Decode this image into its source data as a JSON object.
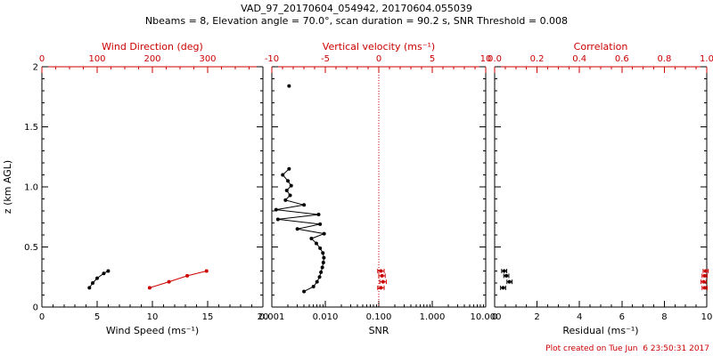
{
  "figure": {
    "title_line1": "VAD_97_20170604_054942, 20170604.055039",
    "title_line2": "Nbeams = 8, Elevation angle = 70.0°, scan duration = 90.2 s, SNR Threshold = 0.008",
    "footer": "Plot created on Tue Jun  6 23:50:31 2017",
    "colors": {
      "background": "#ffffff",
      "primary": "#000000",
      "accent": "#cc0000"
    }
  },
  "chart_data": [
    {
      "type": "scatter",
      "name": "wind",
      "y": {
        "label": "z (km AGL)",
        "lim": [
          0,
          2
        ],
        "ticks": [
          0,
          0.5,
          1,
          1.5,
          2
        ],
        "tickLabels": [
          "0",
          "0.5",
          "1.0",
          "1.5",
          "2"
        ],
        "minorStep": 0.1
      },
      "bottom": {
        "label": "Wind Speed (ms⁻¹)",
        "lim": [
          0,
          20
        ],
        "ticks": [
          0,
          5,
          10,
          15,
          20
        ],
        "tickLabels": [
          "0",
          "5",
          "10",
          "15",
          "20"
        ],
        "minorStep": 1
      },
      "top": {
        "label": "Wind Direction (deg)",
        "lim": [
          0,
          400
        ],
        "color": "accent",
        "ticks": [
          0,
          100,
          200,
          300
        ],
        "tickLabels": [
          "0",
          "100",
          "200",
          "300"
        ],
        "minorStep": 25
      },
      "series": [
        {
          "name": "wind-speed",
          "axis": "bottom",
          "color": "primary",
          "line": true,
          "points": [
            {
              "x": 4.3,
              "z": 0.16
            },
            {
              "x": 4.6,
              "z": 0.2
            },
            {
              "x": 5.0,
              "z": 0.24
            },
            {
              "x": 5.6,
              "z": 0.28
            },
            {
              "x": 6.0,
              "z": 0.3
            }
          ]
        },
        {
          "name": "wind-direction",
          "axis": "top",
          "color": "accent",
          "line": true,
          "points": [
            {
              "x": 195,
              "z": 0.16
            },
            {
              "x": 230,
              "z": 0.21
            },
            {
              "x": 263,
              "z": 0.26
            },
            {
              "x": 298,
              "z": 0.3
            }
          ]
        }
      ]
    },
    {
      "type": "scatter",
      "name": "snr",
      "y": {
        "lim": [
          0,
          2
        ],
        "ticks": [
          0,
          0.5,
          1,
          1.5,
          2
        ],
        "minorStep": 0.1
      },
      "bottom": {
        "label": "SNR",
        "lim": [
          0.001,
          10
        ],
        "log": true,
        "ticks": [
          0.001,
          0.01,
          0.1,
          1,
          10
        ],
        "tickLabels": [
          "0.001",
          "0.010",
          "0.100",
          "1.000",
          "10.000"
        ]
      },
      "top": {
        "label": "Vertical velocity (ms⁻¹)",
        "lim": [
          -10,
          10
        ],
        "color": "accent",
        "ticks": [
          -10,
          -5,
          0,
          5,
          10
        ],
        "tickLabels": [
          "-10",
          "-5",
          "0",
          "5",
          "10"
        ],
        "minorStep": 1
      },
      "refline": {
        "axis": "top",
        "x": 0,
        "style": "dotted",
        "color": "accent"
      },
      "series": [
        {
          "name": "snr-profile",
          "axis": "bottom",
          "color": "primary",
          "line": true,
          "points": [
            {
              "x": 0.004,
              "z": 0.13
            },
            {
              "x": 0.006,
              "z": 0.17
            },
            {
              "x": 0.007,
              "z": 0.21
            },
            {
              "x": 0.0078,
              "z": 0.25
            },
            {
              "x": 0.0083,
              "z": 0.29
            },
            {
              "x": 0.0088,
              "z": 0.33
            },
            {
              "x": 0.0092,
              "z": 0.37
            },
            {
              "x": 0.0094,
              "z": 0.41
            },
            {
              "x": 0.009,
              "z": 0.45
            },
            {
              "x": 0.008,
              "z": 0.49
            },
            {
              "x": 0.0068,
              "z": 0.53
            },
            {
              "x": 0.0055,
              "z": 0.57
            },
            {
              "x": 0.0095,
              "z": 0.61
            },
            {
              "x": 0.003,
              "z": 0.65
            },
            {
              "x": 0.008,
              "z": 0.69
            },
            {
              "x": 0.0013,
              "z": 0.73
            },
            {
              "x": 0.0075,
              "z": 0.77
            },
            {
              "x": 0.0012,
              "z": 0.81
            },
            {
              "x": 0.004,
              "z": 0.85
            },
            {
              "x": 0.0018,
              "z": 0.89
            },
            {
              "x": 0.0022,
              "z": 0.93
            },
            {
              "x": 0.0019,
              "z": 0.97
            },
            {
              "x": 0.0023,
              "z": 1.01
            },
            {
              "x": 0.002,
              "z": 1.05
            },
            {
              "x": 0.0016,
              "z": 1.1
            },
            {
              "x": 0.0021,
              "z": 1.15
            }
          ]
        },
        {
          "name": "snr-isolated-point",
          "axis": "bottom",
          "color": "primary",
          "line": false,
          "points": [
            {
              "x": 0.0021,
              "z": 1.84
            }
          ]
        },
        {
          "name": "vertical-velocity",
          "axis": "top",
          "color": "accent",
          "line": false,
          "xerr": 0.3,
          "points": [
            {
              "x": 0.2,
              "z": 0.16
            },
            {
              "x": 0.4,
              "z": 0.21
            },
            {
              "x": 0.3,
              "z": 0.26
            },
            {
              "x": 0.2,
              "z": 0.3
            }
          ]
        }
      ]
    },
    {
      "type": "scatter",
      "name": "residual",
      "y": {
        "lim": [
          0,
          2
        ],
        "ticks": [
          0,
          0.5,
          1,
          1.5,
          2
        ],
        "minorStep": 0.1
      },
      "bottom": {
        "label": "Residual (ms⁻¹)",
        "lim": [
          0,
          10
        ],
        "ticks": [
          0,
          2,
          4,
          6,
          8,
          10
        ],
        "tickLabels": [
          "0",
          "2",
          "4",
          "6",
          "8",
          "10"
        ],
        "minorStep": 0.5
      },
      "top": {
        "label": "Correlation",
        "lim": [
          0,
          1
        ],
        "color": "accent",
        "ticks": [
          0,
          0.2,
          0.4,
          0.6,
          0.8,
          1
        ],
        "tickLabels": [
          "0.0",
          "0.2",
          "0.4",
          "0.6",
          "0.8",
          "1.0"
        ],
        "minorStep": 0.05
      },
      "series": [
        {
          "name": "residual",
          "axis": "bottom",
          "color": "primary",
          "line": false,
          "xerr": 0.12,
          "points": [
            {
              "x": 0.4,
              "z": 0.16
            },
            {
              "x": 0.7,
              "z": 0.21
            },
            {
              "x": 0.55,
              "z": 0.26
            },
            {
              "x": 0.45,
              "z": 0.3
            }
          ]
        },
        {
          "name": "correlation",
          "axis": "top",
          "color": "accent",
          "line": false,
          "xerr": 0.012,
          "points": [
            {
              "x": 0.99,
              "z": 0.16
            },
            {
              "x": 0.985,
              "z": 0.21
            },
            {
              "x": 0.99,
              "z": 0.26
            },
            {
              "x": 0.995,
              "z": 0.3
            }
          ]
        }
      ]
    }
  ]
}
